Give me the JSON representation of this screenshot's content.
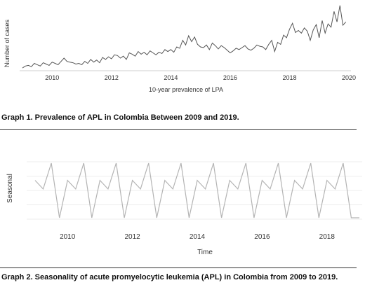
{
  "captions": {
    "graph1": "Graph 1. Prevalence of APL in Colombia Between 2009 and 2019.",
    "graph2": "Graph 2. Seasonality of acute promyelocytic leukemia (APL) in Colombia from 2009 to 2019."
  },
  "chart_data": [
    {
      "type": "line",
      "title": "",
      "xlabel": "10-year prevalence of LPA",
      "ylabel": "Number of cases",
      "x_ticks": [
        "2010",
        "2012",
        "2014",
        "2016",
        "2018",
        "2020"
      ],
      "xlim": [
        2009,
        2020
      ],
      "ylim": [
        0,
        100
      ],
      "grid": false,
      "line_color": "#555555",
      "series": [
        {
          "x": [
            2009.0,
            2009.1,
            2009.2,
            2009.3,
            2009.4,
            2009.5,
            2009.6,
            2009.7,
            2009.8,
            2009.9,
            2010.0,
            2010.1,
            2010.2,
            2010.3,
            2010.4,
            2010.5,
            2010.6,
            2010.7,
            2010.8,
            2010.9,
            2011.0,
            2011.1,
            2011.2,
            2011.3,
            2011.4,
            2011.5,
            2011.6,
            2011.7,
            2011.8,
            2011.9,
            2012.0,
            2012.1,
            2012.2,
            2012.3,
            2012.4,
            2012.5,
            2012.6,
            2012.7,
            2012.8,
            2012.9,
            2013.0,
            2013.1,
            2013.2,
            2013.3,
            2013.4,
            2013.5,
            2013.6,
            2013.7,
            2013.8,
            2013.9,
            2014.0,
            2014.1,
            2014.2,
            2014.3,
            2014.4,
            2014.5,
            2014.6,
            2014.7,
            2014.8,
            2014.9,
            2015.0,
            2015.1,
            2015.2,
            2015.3,
            2015.4,
            2015.5,
            2015.6,
            2015.7,
            2015.8,
            2015.9,
            2016.0,
            2016.1,
            2016.2,
            2016.3,
            2016.4,
            2016.5,
            2016.6,
            2016.7,
            2016.8,
            2016.9,
            2017.0,
            2017.1,
            2017.2,
            2017.3,
            2017.4,
            2017.5,
            2017.6,
            2017.7,
            2017.8,
            2017.9,
            2018.0,
            2018.1,
            2018.2,
            2018.3,
            2018.4,
            2018.5,
            2018.6,
            2018.7,
            2018.8,
            2018.9,
            2019.0,
            2019.1,
            2019.2,
            2019.3,
            2019.4,
            2019.5,
            2019.6,
            2019.7,
            2019.8,
            2019.9
          ],
          "values": [
            2,
            5,
            6,
            4,
            9,
            7,
            5,
            10,
            8,
            6,
            11,
            9,
            7,
            12,
            17,
            12,
            11,
            10,
            8,
            9,
            7,
            12,
            9,
            15,
            11,
            14,
            10,
            18,
            15,
            19,
            16,
            22,
            21,
            17,
            20,
            15,
            25,
            23,
            20,
            27,
            23,
            26,
            22,
            28,
            25,
            22,
            26,
            24,
            30,
            27,
            30,
            26,
            34,
            32,
            44,
            37,
            51,
            42,
            49,
            38,
            34,
            33,
            37,
            30,
            40,
            36,
            31,
            36,
            33,
            29,
            25,
            28,
            32,
            30,
            33,
            36,
            31,
            29,
            32,
            37,
            35,
            34,
            30,
            38,
            44,
            27,
            41,
            38,
            52,
            48,
            61,
            70,
            56,
            59,
            55,
            63,
            58,
            44,
            60,
            68,
            48,
            74,
            55,
            69,
            64,
            88,
            72,
            97,
            67,
            72
          ]
        }
      ]
    },
    {
      "type": "line",
      "title": "",
      "xlabel": "Time",
      "ylabel": "Seasonal",
      "x_ticks": [
        "2010",
        "2012",
        "2014",
        "2016",
        "2018"
      ],
      "xlim": [
        2009,
        2019
      ],
      "ylim": [
        -1,
        1
      ],
      "grid": true,
      "line_color": "#b4b4b4",
      "series": [
        {
          "x": [
            2009.0,
            2009.25,
            2009.5,
            2009.75,
            2010.0,
            2010.25,
            2010.5,
            2010.75,
            2011.0,
            2011.25,
            2011.5,
            2011.75,
            2012.0,
            2012.25,
            2012.5,
            2012.75,
            2013.0,
            2013.25,
            2013.5,
            2013.75,
            2014.0,
            2014.25,
            2014.5,
            2014.75,
            2015.0,
            2015.25,
            2015.5,
            2015.75,
            2016.0,
            2016.25,
            2016.5,
            2016.75,
            2017.0,
            2017.25,
            2017.5,
            2017.75,
            2018.0,
            2018.25,
            2018.5,
            2018.75,
            2019.0
          ],
          "values": [
            0.35,
            0.05,
            0.95,
            -0.95,
            0.35,
            0.05,
            0.95,
            -0.95,
            0.35,
            0.05,
            0.95,
            -0.95,
            0.35,
            0.05,
            0.95,
            -0.95,
            0.35,
            0.05,
            0.95,
            -0.95,
            0.35,
            0.05,
            0.95,
            -0.95,
            0.35,
            0.05,
            0.95,
            -0.95,
            0.35,
            0.05,
            0.95,
            -0.95,
            0.35,
            0.05,
            0.95,
            -0.95,
            0.35,
            0.05,
            0.95,
            -0.95,
            -0.95
          ]
        }
      ]
    }
  ]
}
